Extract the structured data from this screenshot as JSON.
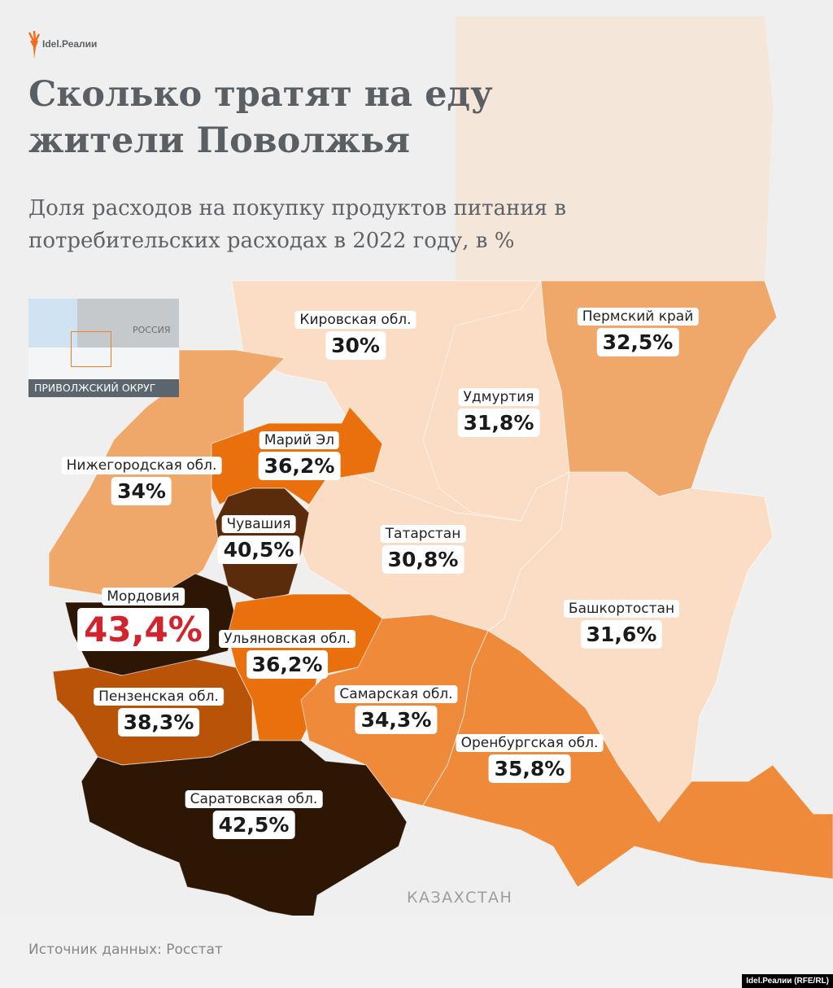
{
  "brand": {
    "logo_text": "Idel.Реалии",
    "credit": "Idel.Реалии (RFE/RL)"
  },
  "title": "Сколько тратят на еду жители Поволжья",
  "subtitle": "Доля расходов на покупку продуктов питания в потребительских расходах в 2022 году, в %",
  "inset": {
    "country": "РОССИЯ",
    "caption": "ПРИВОЛЖСКИЙ ОКРУГ",
    "highlight_color": "#ef7d22"
  },
  "neighbor_label": "КАЗАХСТАН",
  "source": "Источник данных: Росстат",
  "highlight_color": "#d0252f",
  "regions": [
    {
      "name": "Кировская обл.",
      "value": "30%",
      "color": "#fbdcc4"
    },
    {
      "name": "Пермский край",
      "value": "32,5%",
      "color": "#f0a86a"
    },
    {
      "name": "Удмуртия",
      "value": "31,8%",
      "color": "#fbdcc4"
    },
    {
      "name": "Марий Эл",
      "value": "36,2%",
      "color": "#e9700c"
    },
    {
      "name": "Нижегородская обл.",
      "value": "34%",
      "color": "#f0a86a"
    },
    {
      "name": "Чувашия",
      "value": "40,5%",
      "color": "#5a2c0c"
    },
    {
      "name": "Татарстан",
      "value": "30,8%",
      "color": "#fbdcc4"
    },
    {
      "name": "Мордовия",
      "value": "43,4%",
      "color": "#2e1604"
    },
    {
      "name": "Башкортостан",
      "value": "31,6%",
      "color": "#fbdcc4"
    },
    {
      "name": "Ульяновская обл.",
      "value": "36,2%",
      "color": "#e9700c"
    },
    {
      "name": "Самарская обл.",
      "value": "34,3%",
      "color": "#ef8a3a"
    },
    {
      "name": "Пензенская обл.",
      "value": "38,3%",
      "color": "#b95308"
    },
    {
      "name": "Оренбургская обл.",
      "value": "35,8%",
      "color": "#ef8a3a"
    },
    {
      "name": "Саратовская обл.",
      "value": "42,5%",
      "color": "#2e1604"
    }
  ]
}
